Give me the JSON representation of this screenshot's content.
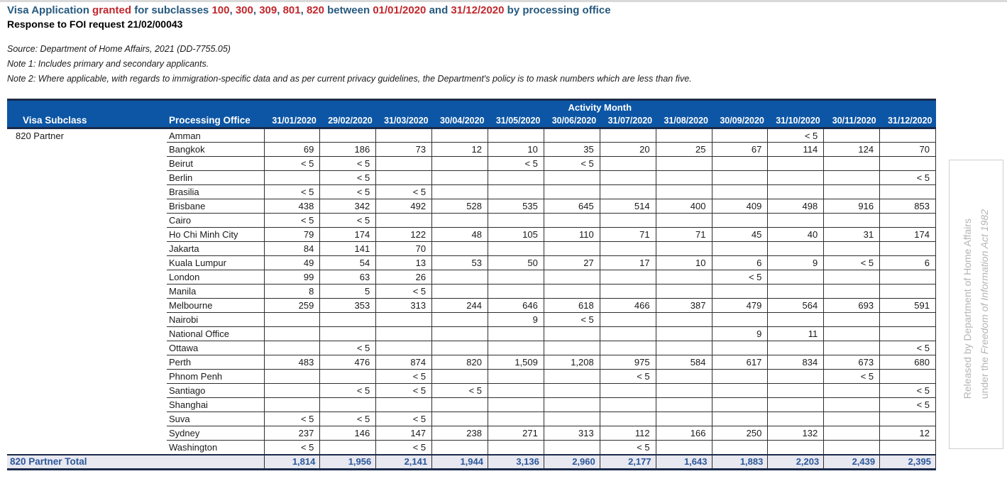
{
  "colors": {
    "title_blue": "#26597E",
    "title_red": "#C1272D",
    "header_blue": "#0C56A5",
    "navy_border": "#1B2A4A",
    "grid": "#2E2E2E",
    "total_bg": "#E8E8F0",
    "total_text": "#2B579A",
    "watermark_gray": "#B5B5B5"
  },
  "page": {
    "title_segments": [
      {
        "t": "Visa Application ",
        "c": "blue"
      },
      {
        "t": "granted",
        "c": "red"
      },
      {
        "t": " for subclasses ",
        "c": "blue"
      },
      {
        "t": "100",
        "c": "red"
      },
      {
        "t": ", ",
        "c": "blue"
      },
      {
        "t": "300",
        "c": "red"
      },
      {
        "t": ", ",
        "c": "blue"
      },
      {
        "t": "309",
        "c": "red"
      },
      {
        "t": ", ",
        "c": "blue"
      },
      {
        "t": "801",
        "c": "red"
      },
      {
        "t": ", ",
        "c": "blue"
      },
      {
        "t": "820",
        "c": "red"
      },
      {
        "t": " between ",
        "c": "blue"
      },
      {
        "t": "01/01/2020",
        "c": "red"
      },
      {
        "t": " and ",
        "c": "blue"
      },
      {
        "t": "31/12/2020",
        "c": "red"
      },
      {
        "t": " by processing office",
        "c": "blue"
      }
    ],
    "subtitle": "Response to FOI request 21/02/00043",
    "source": "Source: Department of Home Affairs, 2021 (DD-7755.05)",
    "note1": "Note 1: Includes primary and secondary applicants.",
    "note2": "Note 2: Where applicable, with regards to immigration-specific data and as per current privacy guidelines, the Department's policy is to mask numbers which are less than five."
  },
  "table": {
    "group_header": "Activity Month",
    "col1": "Visa Subclass",
    "col2": "Processing Office",
    "visa_subclass": "820 Partner",
    "months": [
      "31/01/2020",
      "29/02/2020",
      "31/03/2020",
      "30/04/2020",
      "31/05/2020",
      "30/06/2020",
      "31/07/2020",
      "31/08/2020",
      "30/09/2020",
      "31/10/2020",
      "30/11/2020",
      "31/12/2020"
    ],
    "rows": [
      {
        "office": "Amman",
        "values": [
          "",
          "",
          "",
          "",
          "",
          "",
          "",
          "",
          "",
          "< 5",
          "",
          ""
        ]
      },
      {
        "office": "Bangkok",
        "values": [
          "69",
          "186",
          "73",
          "12",
          "10",
          "35",
          "20",
          "25",
          "67",
          "114",
          "124",
          "70"
        ]
      },
      {
        "office": "Beirut",
        "values": [
          "< 5",
          "< 5",
          "",
          "",
          "< 5",
          "< 5",
          "",
          "",
          "",
          "",
          "",
          ""
        ]
      },
      {
        "office": "Berlin",
        "values": [
          "",
          "< 5",
          "",
          "",
          "",
          "",
          "",
          "",
          "",
          "",
          "",
          "< 5"
        ]
      },
      {
        "office": "Brasilia",
        "values": [
          "< 5",
          "< 5",
          "< 5",
          "",
          "",
          "",
          "",
          "",
          "",
          "",
          "",
          ""
        ]
      },
      {
        "office": "Brisbane",
        "values": [
          "438",
          "342",
          "492",
          "528",
          "535",
          "645",
          "514",
          "400",
          "409",
          "498",
          "916",
          "853"
        ]
      },
      {
        "office": "Cairo",
        "values": [
          "< 5",
          "< 5",
          "",
          "",
          "",
          "",
          "",
          "",
          "",
          "",
          "",
          ""
        ]
      },
      {
        "office": "Ho Chi Minh City",
        "values": [
          "79",
          "174",
          "122",
          "48",
          "105",
          "110",
          "71",
          "71",
          "45",
          "40",
          "31",
          "174"
        ]
      },
      {
        "office": "Jakarta",
        "values": [
          "84",
          "141",
          "70",
          "",
          "",
          "",
          "",
          "",
          "",
          "",
          "",
          ""
        ]
      },
      {
        "office": "Kuala Lumpur",
        "values": [
          "49",
          "54",
          "13",
          "53",
          "50",
          "27",
          "17",
          "10",
          "6",
          "9",
          "< 5",
          "6"
        ]
      },
      {
        "office": "London",
        "values": [
          "99",
          "63",
          "26",
          "",
          "",
          "",
          "",
          "",
          "< 5",
          "",
          "",
          ""
        ]
      },
      {
        "office": "Manila",
        "values": [
          "8",
          "5",
          "< 5",
          "",
          "",
          "",
          "",
          "",
          "",
          "",
          "",
          ""
        ]
      },
      {
        "office": "Melbourne",
        "values": [
          "259",
          "353",
          "313",
          "244",
          "646",
          "618",
          "466",
          "387",
          "479",
          "564",
          "693",
          "591"
        ]
      },
      {
        "office": "Nairobi",
        "values": [
          "",
          "",
          "",
          "",
          "9",
          "< 5",
          "",
          "",
          "",
          "",
          "",
          ""
        ]
      },
      {
        "office": "National Office",
        "values": [
          "",
          "",
          "",
          "",
          "",
          "",
          "",
          "",
          "9",
          "11",
          "",
          ""
        ]
      },
      {
        "office": "Ottawa",
        "values": [
          "",
          "< 5",
          "",
          "",
          "",
          "",
          "",
          "",
          "",
          "",
          "",
          "< 5"
        ]
      },
      {
        "office": "Perth",
        "values": [
          "483",
          "476",
          "874",
          "820",
          "1,509",
          "1,208",
          "975",
          "584",
          "617",
          "834",
          "673",
          "680"
        ]
      },
      {
        "office": "Phnom Penh",
        "values": [
          "",
          "",
          "< 5",
          "",
          "",
          "",
          "< 5",
          "",
          "",
          "",
          "< 5",
          ""
        ]
      },
      {
        "office": "Santiago",
        "values": [
          "",
          "< 5",
          "< 5",
          "< 5",
          "",
          "",
          "",
          "",
          "",
          "",
          "",
          "< 5"
        ]
      },
      {
        "office": "Shanghai",
        "values": [
          "",
          "",
          "",
          "",
          "",
          "",
          "",
          "",
          "",
          "",
          "",
          "< 5"
        ]
      },
      {
        "office": "Suva",
        "values": [
          "< 5",
          "< 5",
          "< 5",
          "",
          "",
          "",
          "",
          "",
          "",
          "",
          "",
          ""
        ]
      },
      {
        "office": "Sydney",
        "values": [
          "237",
          "146",
          "147",
          "238",
          "271",
          "313",
          "112",
          "166",
          "250",
          "132",
          "",
          "12"
        ]
      },
      {
        "office": "Washington",
        "values": [
          "< 5",
          "",
          "< 5",
          "",
          "",
          "",
          "< 5",
          "",
          "",
          "",
          "",
          ""
        ]
      }
    ],
    "total": {
      "label": "820 Partner Total",
      "values": [
        "1,814",
        "1,956",
        "2,141",
        "1,944",
        "3,136",
        "2,960",
        "2,177",
        "1,643",
        "1,883",
        "2,203",
        "2,439",
        "2,395"
      ]
    }
  },
  "watermark": {
    "line1": "Released by Department of Home Affairs",
    "line2_prefix": "under the ",
    "line2_italic": "Freedom of Information Act 1982"
  }
}
